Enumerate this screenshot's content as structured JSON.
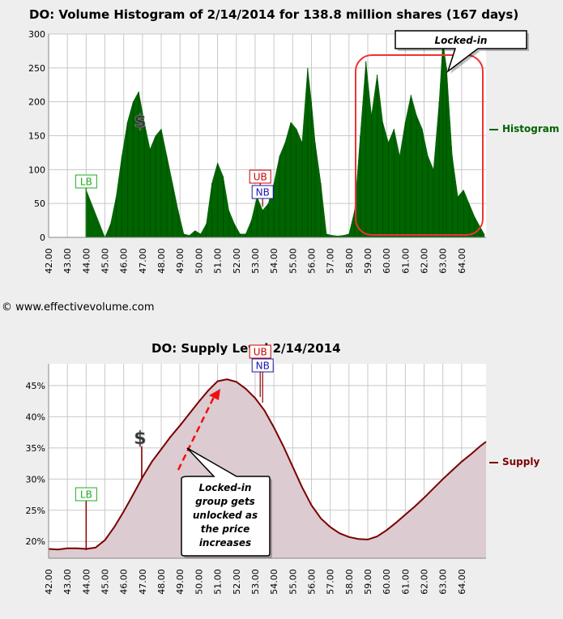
{
  "copyright": "© www.effectivevolume.com",
  "chart_data": [
    {
      "type": "bar",
      "title": "DO: Volume Histogram of 2/14/2014 for 138.8 million shares (167 days)",
      "legend": "Histogram",
      "legend_position": "right",
      "grid": true,
      "color": "#006400",
      "x_ticks": [
        "42.00",
        "43.00",
        "44.00",
        "45.00",
        "46.00",
        "47.00",
        "48.00",
        "49.00",
        "50.00",
        "51.00",
        "52.00",
        "53.00",
        "54.00",
        "55.00",
        "56.00",
        "57.00",
        "58.00",
        "59.00",
        "60.00",
        "61.00",
        "62.00",
        "63.00",
        "64.00"
      ],
      "y_ticks": [
        "0",
        "50",
        "100",
        "150",
        "200",
        "250",
        "300"
      ],
      "xlim": [
        42,
        65.3
      ],
      "ylim": [
        0,
        300
      ],
      "x": [
        44.0,
        45.0,
        45.3,
        45.6,
        45.9,
        46.2,
        46.5,
        46.8,
        47.1,
        47.4,
        47.7,
        48.0,
        48.3,
        48.6,
        48.9,
        49.2,
        49.5,
        49.8,
        50.1,
        50.4,
        50.7,
        51.0,
        51.3,
        51.6,
        51.9,
        52.2,
        52.5,
        52.8,
        53.1,
        53.4,
        53.7,
        54.0,
        54.3,
        54.6,
        54.9,
        55.2,
        55.5,
        55.8,
        56.0,
        56.2,
        56.5,
        56.8,
        57.1,
        57.4,
        57.7,
        58.0,
        58.3,
        58.6,
        58.9,
        59.2,
        59.5,
        59.8,
        60.1,
        60.4,
        60.7,
        61.0,
        61.3,
        61.6,
        61.9,
        62.2,
        62.5,
        62.8,
        63.0,
        63.2,
        63.5,
        63.8,
        64.1,
        64.4,
        64.7,
        65.0,
        65.2
      ],
      "values": [
        70,
        0,
        20,
        60,
        120,
        170,
        200,
        215,
        170,
        130,
        150,
        160,
        120,
        80,
        40,
        5,
        3,
        10,
        5,
        20,
        80,
        110,
        90,
        40,
        20,
        5,
        5,
        25,
        60,
        40,
        50,
        80,
        120,
        140,
        170,
        160,
        140,
        250,
        200,
        140,
        80,
        5,
        3,
        2,
        3,
        5,
        40,
        150,
        260,
        180,
        240,
        170,
        140,
        160,
        120,
        170,
        210,
        180,
        160,
        120,
        100,
        200,
        290,
        250,
        120,
        60,
        70,
        50,
        30,
        15,
        5
      ],
      "annotations": [
        {
          "text": "LB",
          "x": 44.0
        },
        {
          "text": "UB",
          "x": 53.4
        },
        {
          "text": "NB",
          "x": 53.4
        },
        {
          "text": "$",
          "x": 47.0
        }
      ],
      "callout": "Locked-in"
    },
    {
      "type": "area",
      "title": "DO: Supply Level 2/14/2014",
      "legend": "Supply",
      "legend_position": "right",
      "grid": true,
      "color": "#7a0000",
      "fill": "#dccbd0",
      "x_ticks": [
        "42.00",
        "43.00",
        "44.00",
        "45.00",
        "46.00",
        "47.00",
        "48.00",
        "49.00",
        "50.00",
        "51.00",
        "52.00",
        "53.00",
        "54.00",
        "55.00",
        "56.00",
        "57.00",
        "58.00",
        "59.00",
        "60.00",
        "61.00",
        "62.00",
        "63.00",
        "64.00"
      ],
      "y_ticks": [
        "20%",
        "25%",
        "30%",
        "35%",
        "40%",
        "45%"
      ],
      "xlim": [
        42,
        65.3
      ],
      "ylim": [
        17.3,
        48.5
      ],
      "x": [
        42.0,
        42.5,
        43.0,
        43.5,
        44.0,
        44.5,
        45.0,
        45.5,
        46.0,
        46.5,
        47.0,
        47.5,
        48.0,
        48.5,
        49.0,
        49.5,
        50.0,
        50.5,
        51.0,
        51.5,
        52.0,
        52.5,
        53.0,
        53.5,
        54.0,
        54.5,
        55.0,
        55.5,
        56.0,
        56.5,
        57.0,
        57.5,
        58.0,
        58.5,
        59.0,
        59.5,
        60.0,
        60.5,
        61.0,
        61.5,
        62.0,
        62.5,
        63.0,
        63.5,
        64.0,
        64.5,
        65.0,
        65.3
      ],
      "values": [
        18.8,
        18.7,
        18.9,
        18.9,
        18.8,
        19.0,
        20.2,
        22.3,
        24.8,
        27.5,
        30.3,
        32.8,
        34.8,
        36.8,
        38.6,
        40.5,
        42.4,
        44.2,
        45.7,
        46.0,
        45.6,
        44.5,
        43.0,
        41.0,
        38.3,
        35.3,
        32.0,
        28.7,
        25.8,
        23.7,
        22.3,
        21.3,
        20.7,
        20.4,
        20.3,
        20.8,
        21.8,
        23.0,
        24.3,
        25.6,
        27.0,
        28.5,
        30.0,
        31.4,
        32.8,
        34.0,
        35.3,
        36.0
      ],
      "annotations": [
        {
          "text": "LB",
          "x": 44.0
        },
        {
          "text": "UB",
          "x": 53.4
        },
        {
          "text": "NB",
          "x": 53.4
        },
        {
          "text": "$",
          "x": 47.0
        }
      ],
      "callout": "Locked-in group gets unlocked as the price increases"
    }
  ]
}
